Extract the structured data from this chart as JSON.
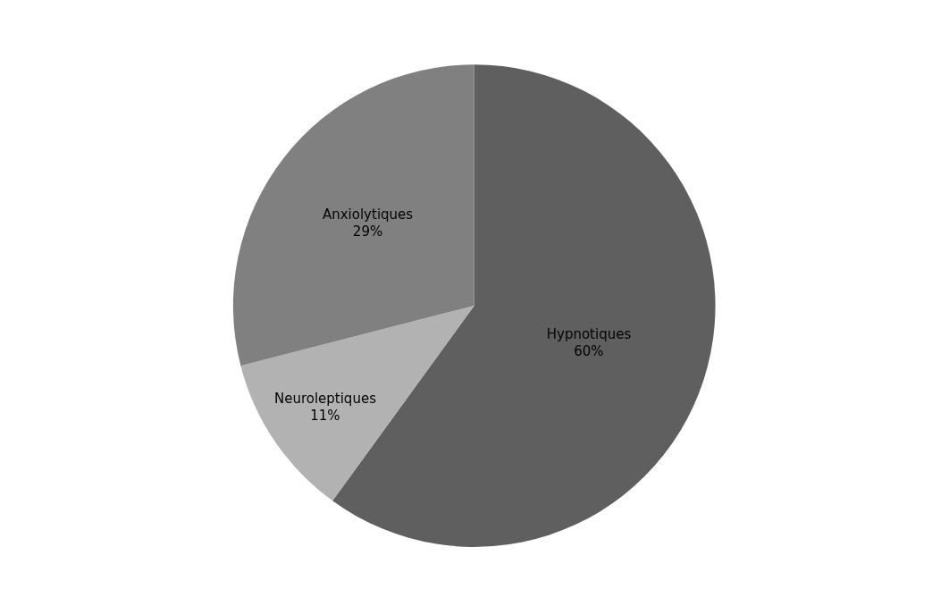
{
  "chart_data": {
    "type": "pie",
    "categories": [
      "Hypnotiques",
      "Neuroleptiques",
      "Anxiolytiques"
    ],
    "values": [
      60,
      11,
      29
    ],
    "value_labels": [
      "60%",
      "11%",
      "29%"
    ],
    "colors": [
      "#5f5f5f",
      "#b2b2b2",
      "#808080"
    ],
    "legend": false
  }
}
